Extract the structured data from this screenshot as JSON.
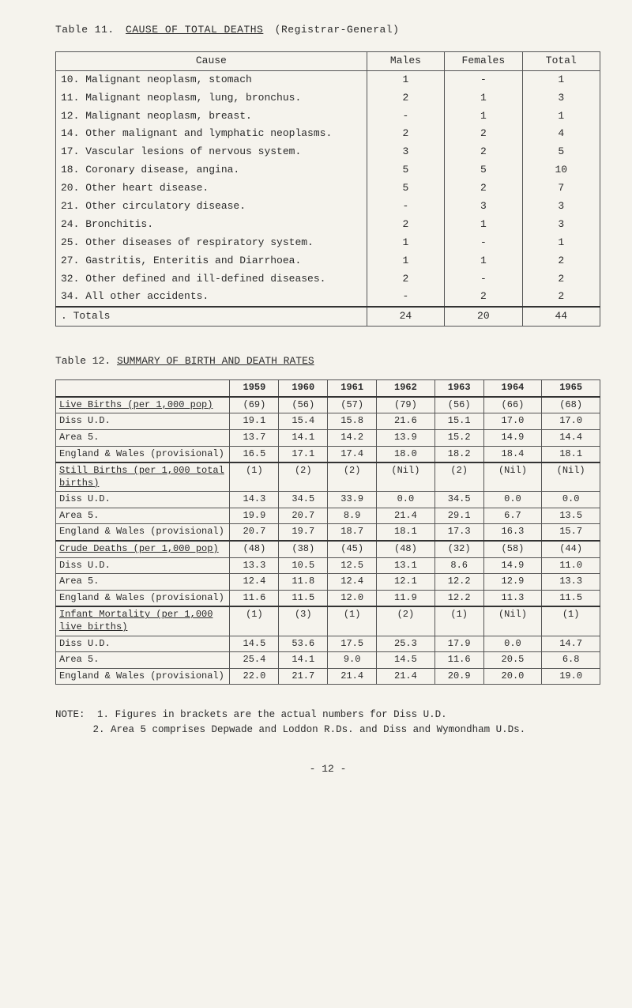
{
  "table11": {
    "pre": "Table 11.",
    "title": "CAUSE OF TOTAL DEATHS",
    "paren": "(Registrar-General)",
    "headers": [
      "Cause",
      "Males",
      "Females",
      "Total"
    ],
    "rows": [
      {
        "n": "10.",
        "cause": "Malignant neoplasm, stomach",
        "m": "1",
        "f": "-",
        "t": "1"
      },
      {
        "n": "11.",
        "cause": "Malignant neoplasm, lung, bronchus.",
        "m": "2",
        "f": "1",
        "t": "3"
      },
      {
        "n": "12.",
        "cause": "Malignant neoplasm, breast.",
        "m": "-",
        "f": "1",
        "t": "1"
      },
      {
        "n": "14.",
        "cause": "Other malignant and lymphatic neoplasms.",
        "m": "2",
        "f": "2",
        "t": "4"
      },
      {
        "n": "17.",
        "cause": "Vascular lesions of nervous system.",
        "m": "3",
        "f": "2",
        "t": "5"
      },
      {
        "n": "18.",
        "cause": "Coronary disease, angina.",
        "m": "5",
        "f": "5",
        "t": "10"
      },
      {
        "n": "20.",
        "cause": "Other heart disease.",
        "m": "5",
        "f": "2",
        "t": "7"
      },
      {
        "n": "21.",
        "cause": "Other circulatory disease.",
        "m": "-",
        "f": "3",
        "t": "3"
      },
      {
        "n": "24.",
        "cause": "Bronchitis.",
        "m": "2",
        "f": "1",
        "t": "3"
      },
      {
        "n": "25.",
        "cause": "Other diseases of respiratory system.",
        "m": "1",
        "f": "-",
        "t": "1"
      },
      {
        "n": "27.",
        "cause": "Gastritis, Enteritis and Diarrhoea.",
        "m": "1",
        "f": "1",
        "t": "2"
      },
      {
        "n": "32.",
        "cause": "Other defined and ill-defined diseases.",
        "m": "2",
        "f": "-",
        "t": "2"
      },
      {
        "n": "34.",
        "cause": "All other accidents.",
        "m": "-",
        "f": "2",
        "t": "2"
      }
    ],
    "totals": {
      "label": ". Totals",
      "m": "24",
      "f": "20",
      "t": "44"
    }
  },
  "table12": {
    "pre": "Table 12.",
    "title": "SUMMARY OF BIRTH AND DEATH RATES",
    "years": [
      "1959",
      "1960",
      "1961",
      "1962",
      "1963",
      "1964",
      "1965"
    ],
    "sections": [
      {
        "head": "Live Births (per 1,000 pop)",
        "rows": [
          {
            "label": "Diss U.D.",
            "v": [
              "(69)",
              "(56)",
              "(57)",
              "(79)",
              "(56)",
              "(66)",
              "(68)"
            ]
          },
          {
            "label": "Diss U.D.",
            "v": [
              "19.1",
              "15.4",
              "15.8",
              "21.6",
              "15.1",
              "17.0",
              "17.0"
            ]
          },
          {
            "label": "Area 5.",
            "v": [
              "13.7",
              "14.1",
              "14.2",
              "13.9",
              "15.2",
              "14.9",
              "14.4"
            ]
          },
          {
            "label": "England & Wales (provisional)",
            "v": [
              "16.5",
              "17.1",
              "17.4",
              "18.0",
              "18.2",
              "18.4",
              "18.1"
            ]
          }
        ],
        "merge_first_two_labels": true,
        "first_label": "Live Births (per 1,000 pop)"
      },
      {
        "head": "Still Births (per 1,000 total births)",
        "rows": [
          {
            "label": "Diss U.D.",
            "v": [
              "(1)",
              "(2)",
              "(2)",
              "(Nil)",
              "(2)",
              "(Nil)",
              "(Nil)"
            ]
          },
          {
            "label": "Diss U.D.",
            "v": [
              "14.3",
              "34.5",
              "33.9",
              "0.0",
              "34.5",
              "0.0",
              "0.0"
            ]
          },
          {
            "label": "Area 5.",
            "v": [
              "19.9",
              "20.7",
              "8.9",
              "21.4",
              "29.1",
              "6.7",
              "13.5"
            ]
          },
          {
            "label": "England & Wales (provisional)",
            "v": [
              "20.7",
              "19.7",
              "18.7",
              "18.1",
              "17.3",
              "16.3",
              "15.7"
            ]
          }
        ]
      },
      {
        "head": "Crude Deaths (per 1,000 pop)",
        "rows": [
          {
            "label": "Diss U.D.",
            "v": [
              "(48)",
              "(38)",
              "(45)",
              "(48)",
              "(32)",
              "(58)",
              "(44)"
            ]
          },
          {
            "label": "Diss U.D.",
            "v": [
              "13.3",
              "10.5",
              "12.5",
              "13.1",
              "8.6",
              "14.9",
              "11.0"
            ]
          },
          {
            "label": "Area 5.",
            "v": [
              "12.4",
              "11.8",
              "12.4",
              "12.1",
              "12.2",
              "12.9",
              "13.3"
            ]
          },
          {
            "label": "England & Wales (provisional)",
            "v": [
              "11.6",
              "11.5",
              "12.0",
              "11.9",
              "12.2",
              "11.3",
              "11.5"
            ]
          }
        ]
      },
      {
        "head": "Infant Mortality (per 1,000 live births)",
        "rows": [
          {
            "label": "Diss U.D.",
            "v": [
              "(1)",
              "(3)",
              "(1)",
              "(2)",
              "(1)",
              "(Nil)",
              "(1)"
            ]
          },
          {
            "label": "Diss U.D.",
            "v": [
              "14.5",
              "53.6",
              "17.5",
              "25.3",
              "17.9",
              "0.0",
              "14.7"
            ]
          },
          {
            "label": "Area 5.",
            "v": [
              "25.4",
              "14.1",
              "9.0",
              "14.5",
              "11.6",
              "20.5",
              "6.8"
            ]
          },
          {
            "label": "England & Wales (provisional)",
            "v": [
              "22.0",
              "21.7",
              "21.4",
              "21.4",
              "20.9",
              "20.0",
              "19.0"
            ]
          }
        ]
      }
    ]
  },
  "note": {
    "label": "NOTE:",
    "lines": [
      {
        "n": "1.",
        "t": "Figures in brackets are the actual numbers for Diss U.D."
      },
      {
        "n": "2.",
        "t": "Area 5 comprises Depwade and Loddon R.Ds. and Diss and Wymondham U.Ds."
      }
    ]
  },
  "pagenum": "- 12 -"
}
